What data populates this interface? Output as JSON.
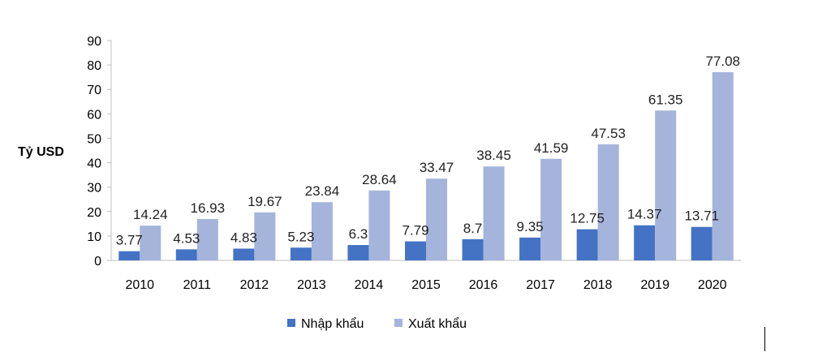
{
  "chart_data": {
    "type": "bar",
    "title": "",
    "xlabel": "",
    "ylabel": "Tỷ USD",
    "ylim": [
      0,
      90
    ],
    "yticks": [
      0,
      10,
      20,
      30,
      40,
      50,
      60,
      70,
      80,
      90
    ],
    "grid": false,
    "legend_position": "bottom",
    "categories": [
      "2010",
      "2011",
      "2012",
      "2013",
      "2014",
      "2015",
      "2016",
      "2017",
      "2018",
      "2019",
      "2020"
    ],
    "series": [
      {
        "name": "Nhập khẩu",
        "color": "#4472c4",
        "values": [
          3.77,
          4.53,
          4.83,
          5.23,
          6.3,
          7.79,
          8.7,
          9.35,
          12.75,
          14.37,
          13.71
        ]
      },
      {
        "name": "Xuất khẩu",
        "color": "#a5b4db",
        "values": [
          14.24,
          16.93,
          19.67,
          23.84,
          28.64,
          33.47,
          38.45,
          41.59,
          47.53,
          61.35,
          77.08
        ]
      }
    ]
  }
}
